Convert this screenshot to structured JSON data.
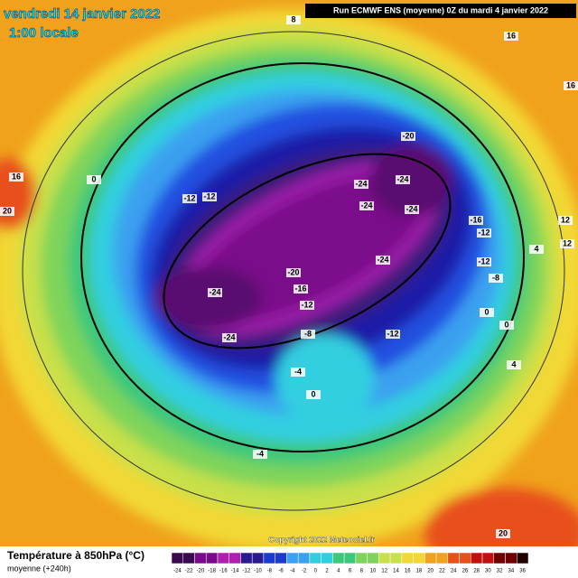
{
  "header": {
    "date": "vendredi 14 janvier 2022",
    "time": "1:00 locale",
    "run": "Run ECMWF ENS (moyenne) 0Z du mardi 4 janvier 2022"
  },
  "copyright": "Copyright 2022 Meteociel.fr",
  "legend": {
    "title": "Température à 850hPa (°C)",
    "subtitle": "moyenne  (+240h)",
    "ticks": [
      -24,
      -22,
      -20,
      -18,
      -16,
      -14,
      -12,
      -10,
      -8,
      -6,
      -4,
      -2,
      0,
      2,
      4,
      6,
      8,
      10,
      12,
      14,
      16,
      18,
      20,
      22,
      24,
      26,
      28,
      30,
      32,
      34,
      36
    ]
  },
  "contour_labels": [
    -20,
    -24,
    -24,
    -24,
    -24,
    -16,
    -12,
    -12,
    -12,
    -24,
    -12,
    -20,
    -16,
    -24,
    -12,
    -8,
    -12,
    -8,
    -24,
    0,
    0,
    -4,
    0,
    4,
    8,
    16,
    16,
    20,
    0,
    16,
    12,
    12,
    4,
    -4,
    20
  ]
}
